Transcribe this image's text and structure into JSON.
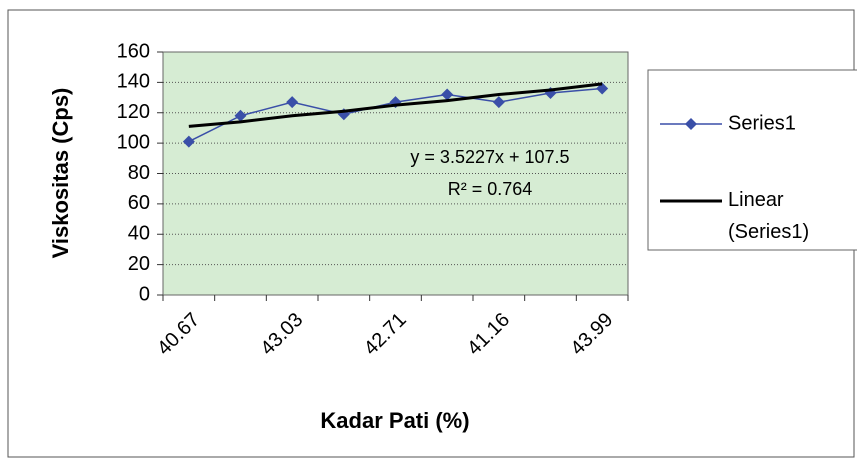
{
  "chart_data": {
    "type": "line",
    "categories": [
      "40.67",
      null,
      "43.03",
      null,
      "42.71",
      null,
      "41.16",
      null,
      "43.99"
    ],
    "series": [
      {
        "name": "Series1",
        "color": "#3a4fa8",
        "values": [
          101,
          118,
          127,
          119,
          127,
          132,
          127,
          133,
          136
        ]
      },
      {
        "name": "Linear (Series1)",
        "color": "#000000",
        "values": [
          111,
          114,
          118,
          121,
          125,
          128,
          132,
          135,
          139
        ]
      }
    ],
    "ylim": [
      0,
      160
    ],
    "yticks": [
      0,
      20,
      40,
      60,
      80,
      100,
      120,
      140,
      160
    ],
    "grid": true,
    "x_label": "Kadar Pati (%)",
    "y_label": "Viskositas (Cps)",
    "annotations": [
      "y = 3.5227x + 107.5",
      "R² = 0.764"
    ],
    "legend": "right"
  }
}
